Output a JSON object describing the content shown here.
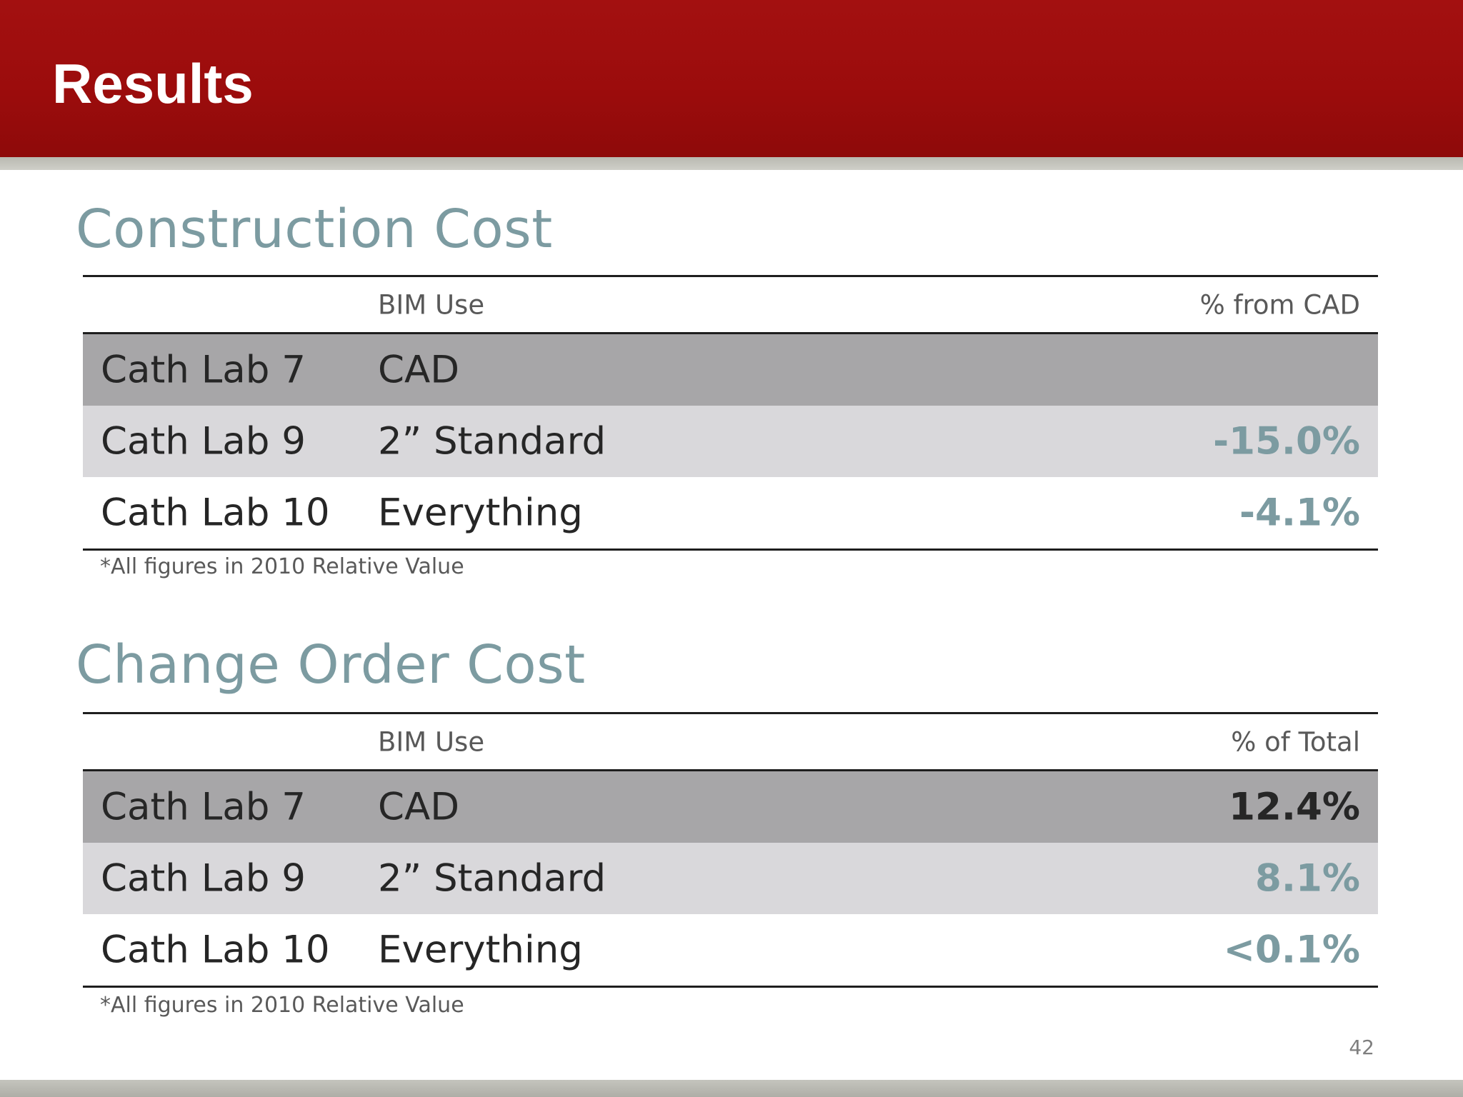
{
  "slide": {
    "title": "Results",
    "page_number": "42"
  },
  "construction": {
    "heading": "Construction Cost",
    "col_bim": "BIM Use",
    "col_pct": "% from CAD",
    "rows": [
      {
        "lab": "Cath Lab 7",
        "bim": "CAD",
        "pct": ""
      },
      {
        "lab": "Cath Lab 9",
        "bim": "2” Standard",
        "pct": "-15.0%"
      },
      {
        "lab": "Cath Lab 10",
        "bim": "Everything",
        "pct": "-4.1%"
      }
    ],
    "footnote": "*All figures in 2010 Relative Value"
  },
  "change_order": {
    "heading": "Change Order Cost",
    "col_bim": "BIM Use",
    "col_pct": "% of Total",
    "rows": [
      {
        "lab": "Cath Lab 7",
        "bim": "CAD",
        "pct": "12.4%"
      },
      {
        "lab": "Cath Lab 9",
        "bim": "2” Standard",
        "pct": "8.1%"
      },
      {
        "lab": "Cath Lab 10",
        "bim": "Everything",
        "pct": "<0.1%"
      }
    ],
    "footnote": "*All figures in 2010 Relative Value"
  },
  "colors": {
    "header": "#9b0c0c",
    "heading": "#7c9ba1",
    "row_dark": "#a7a6a8",
    "row_light": "#d9d8db"
  }
}
